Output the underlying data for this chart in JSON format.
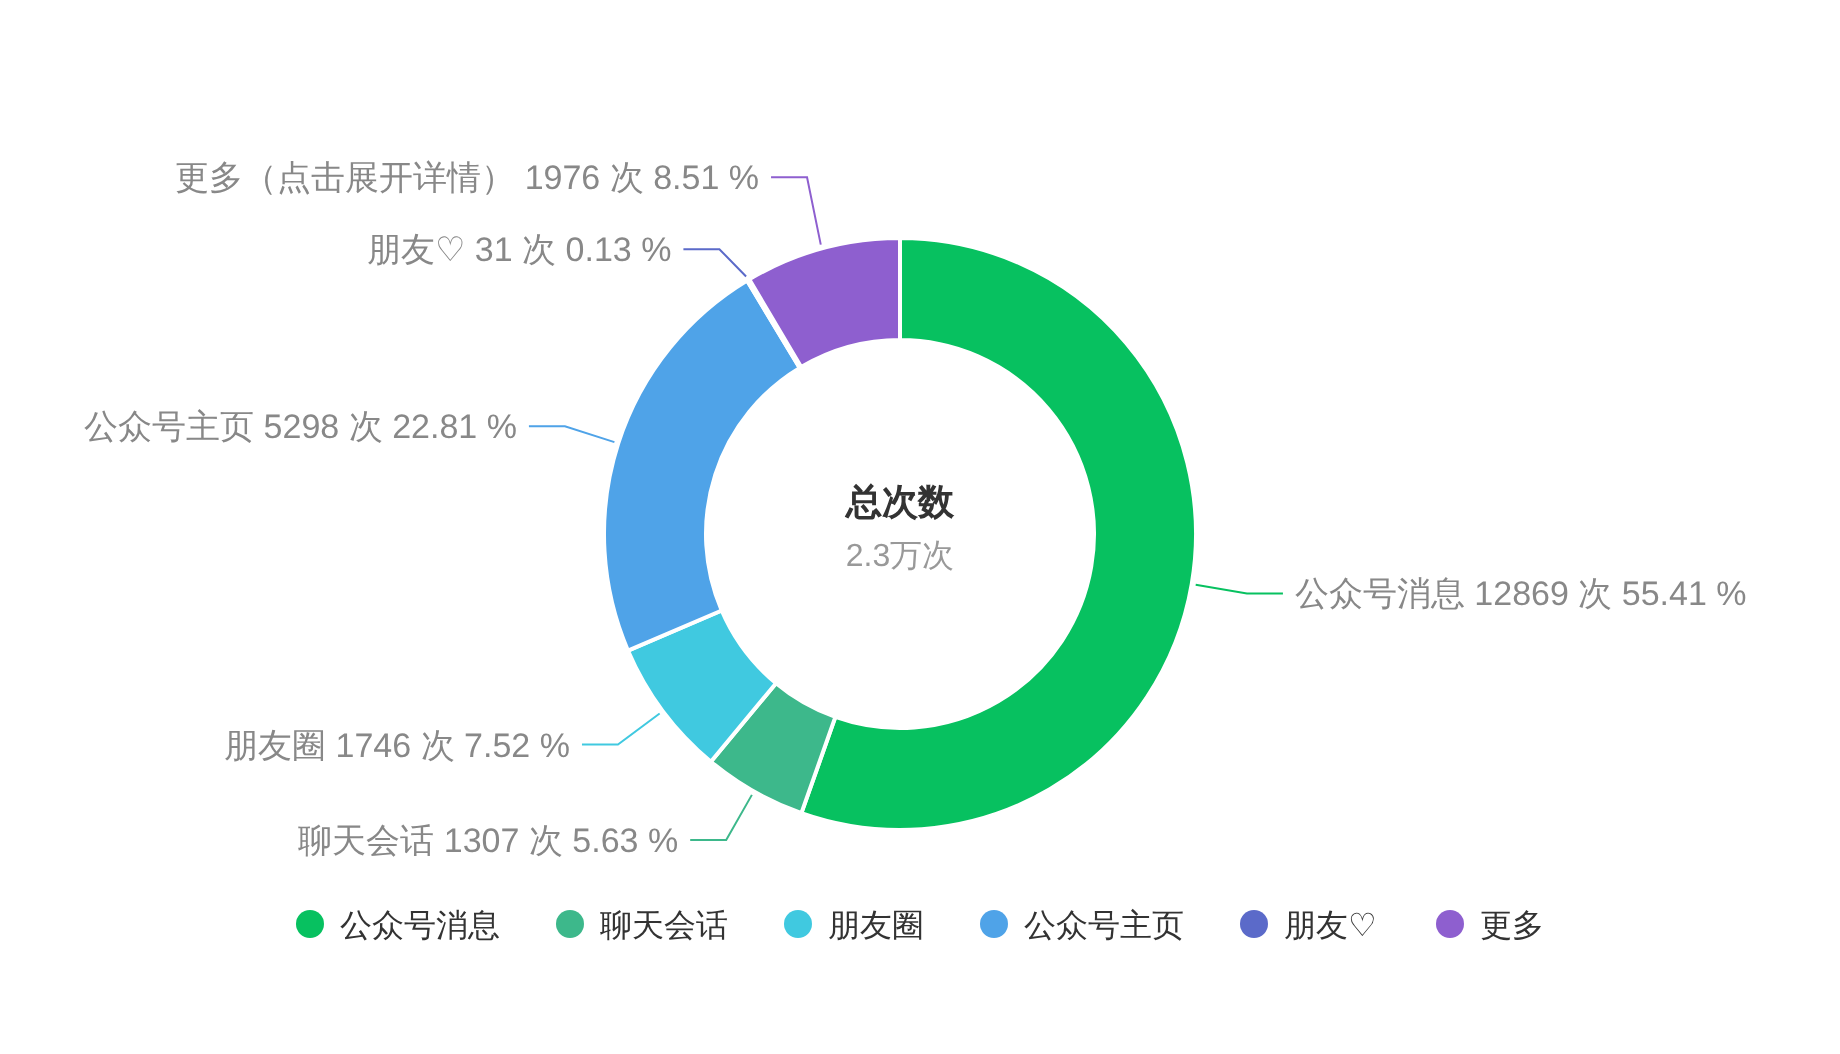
{
  "chart_data": {
    "type": "donut",
    "title": "总次数",
    "subtitle": "2.3万次",
    "categories": [
      "公众号消息",
      "聊天会话",
      "朋友圈",
      "公众号主页",
      "朋友♡",
      "更多"
    ],
    "values": [
      12869,
      1307,
      1746,
      5298,
      31,
      1976
    ],
    "colors": [
      "#07c160",
      "#3db88b",
      "#40c9e0",
      "#4fa3e8",
      "#5b6ac9",
      "#8e5fcf"
    ],
    "value_labels": [
      "公众号消息 12869 次 55.41 %",
      "聊天会话 1307 次 5.63 %",
      "朋友圈 1746 次 7.52 %",
      "公众号主页 5298 次 22.81 %",
      "朋友♡ 31 次 0.13 %",
      "更多（点击展开详情） 1976 次 8.51 %"
    ],
    "legend": "bottom"
  }
}
